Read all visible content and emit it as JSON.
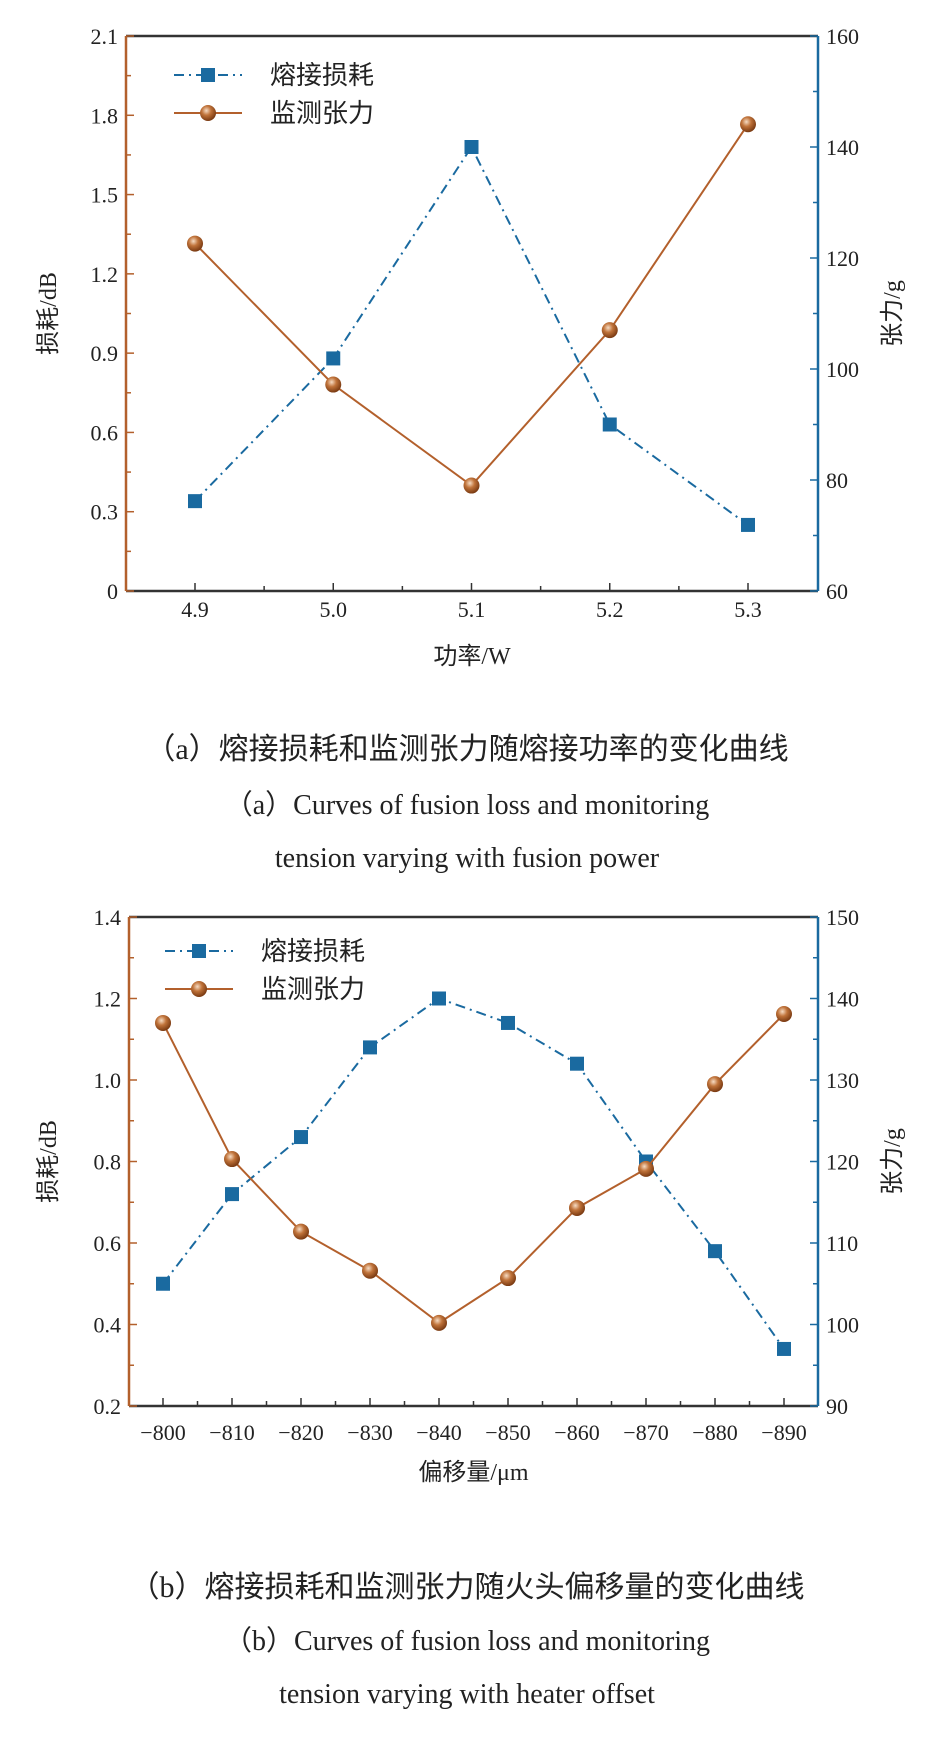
{
  "colors": {
    "loss": "#1a6aa0",
    "tension": "#b3602c",
    "frame": "#333333"
  },
  "chart_data": [
    {
      "type": "line",
      "xlabel": "功率/W",
      "ylabel_left": "损耗/dB",
      "ylabel_right": "张力/g",
      "categories": [
        "4.9",
        "5.0",
        "5.1",
        "5.2",
        "5.3"
      ],
      "ylim_left": [
        0,
        2.1
      ],
      "yticks_left": [
        "0",
        "0.3",
        "0.6",
        "0.9",
        "1.2",
        "1.5",
        "1.8",
        "2.1"
      ],
      "ylim_right": [
        60,
        160
      ],
      "yticks_right": [
        "60",
        "80",
        "100",
        "120",
        "140",
        "160"
      ],
      "legend_position": "top-left",
      "grid": false,
      "series": [
        {
          "name": "熔接损耗",
          "axis": "left",
          "marker": "square",
          "line": "dash-dot",
          "values": [
            0.34,
            0.88,
            1.68,
            0.63,
            0.25
          ]
        },
        {
          "name": "监测张力",
          "axis": "right",
          "marker": "circle",
          "line": "solid",
          "values": [
            122.6,
            97.2,
            79.0,
            107.0,
            144.1
          ]
        }
      ],
      "caption_cn": "（a）熔接损耗和监测张力随熔接功率的变化曲线",
      "caption_en_1": "（a）Curves of fusion loss and monitoring",
      "caption_en_2": "tension varying with fusion power"
    },
    {
      "type": "line",
      "xlabel": "偏移量/μm",
      "ylabel_left": "损耗/dB",
      "ylabel_right": "张力/g",
      "categories": [
        "−800",
        "−810",
        "−820",
        "−830",
        "−840",
        "−850",
        "−860",
        "−870",
        "−880",
        "−890"
      ],
      "ylim_left": [
        0.2,
        1.4
      ],
      "yticks_left": [
        "0.2",
        "0.4",
        "0.6",
        "0.8",
        "1.0",
        "1.2",
        "1.4"
      ],
      "ylim_right": [
        90,
        150
      ],
      "yticks_right": [
        "90",
        "100",
        "110",
        "120",
        "130",
        "140",
        "150"
      ],
      "legend_position": "top-left",
      "grid": false,
      "series": [
        {
          "name": "熔接损耗",
          "axis": "left",
          "marker": "square",
          "line": "dash-dot",
          "values": [
            0.5,
            0.72,
            0.86,
            1.08,
            1.2,
            1.14,
            1.04,
            0.8,
            0.58,
            0.34
          ]
        },
        {
          "name": "监测张力",
          "axis": "right",
          "marker": "circle",
          "line": "solid",
          "values": [
            137.0,
            120.3,
            111.4,
            106.6,
            100.2,
            105.7,
            114.3,
            119.1,
            129.5,
            138.1
          ]
        }
      ],
      "caption_cn": "（b）熔接损耗和监测张力随火头偏移量的变化曲线",
      "caption_en_1": "（b）Curves of fusion loss and monitoring",
      "caption_en_2": "tension varying with heater offset"
    }
  ]
}
